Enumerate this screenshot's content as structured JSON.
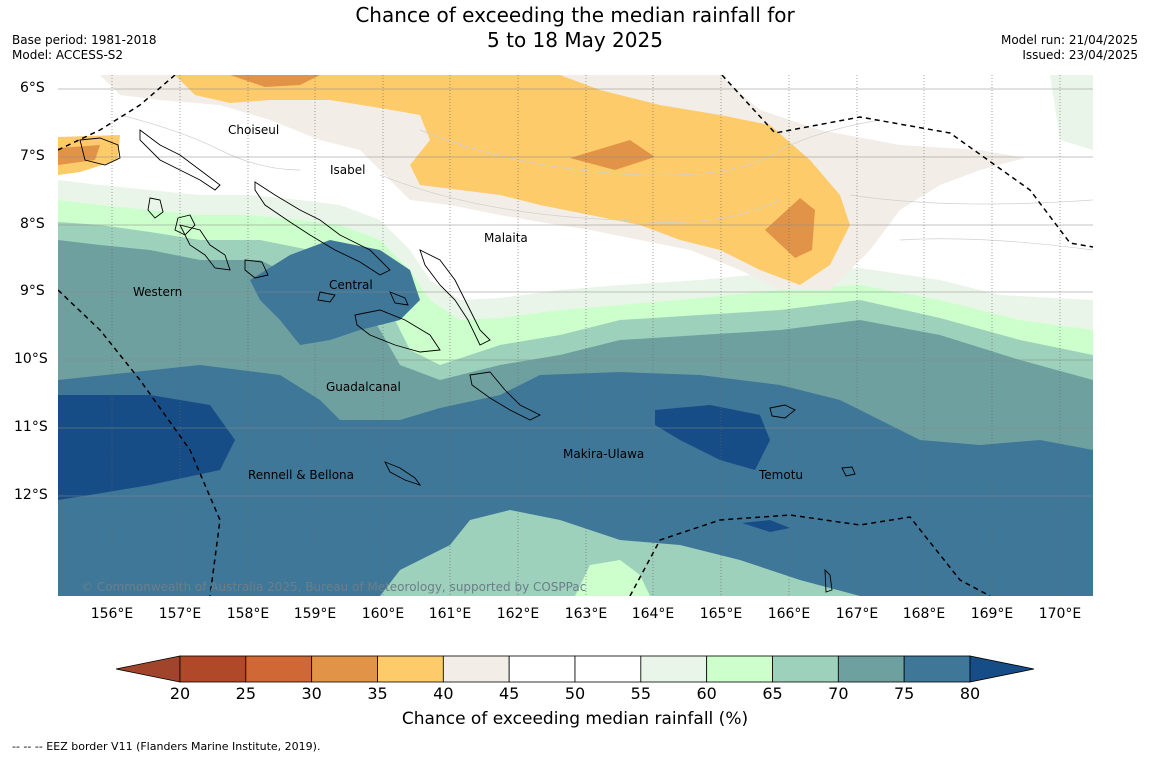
{
  "title": {
    "line1": "Chance of exceeding the median rainfall for",
    "line2": "5 to 18 May 2025"
  },
  "meta_left": {
    "base_period": "Base period: 1981-2018",
    "model": "Model: ACCESS-S2"
  },
  "meta_right": {
    "model_run": "Model run: 21/04/2025",
    "issued": "Issued: 23/04/2025"
  },
  "credit": "© Commonwealth of Australia 2025, Bureau of Meteorology, supported by COSPPac",
  "footer": "-- -- -- EEZ border V11 (Flanders Marine Institute, 2019).",
  "colorbar": {
    "label": "Chance of exceeding median rainfall (%)",
    "ticks": [
      "20",
      "25",
      "30",
      "35",
      "40",
      "45",
      "50",
      "55",
      "60",
      "65",
      "70",
      "75",
      "80"
    ],
    "colors": [
      "#b0482a",
      "#cf6834",
      "#e19448",
      "#fecb6a",
      "#f2ede7",
      "#ffffff",
      "#ffffff",
      "#eaf5ea",
      "#ccffcc",
      "#9dd1bb",
      "#6ea0a0",
      "#3f7799",
      "#174d87"
    ],
    "under_color": "#a0452c",
    "over_color": "#174d87"
  },
  "axes": {
    "lon_labels": [
      "156°E",
      "157°E",
      "158°E",
      "159°E",
      "160°E",
      "161°E",
      "162°E",
      "163°E",
      "164°E",
      "165°E",
      "166°E",
      "167°E",
      "168°E",
      "169°E",
      "170°E"
    ],
    "lat_labels": [
      "6°S",
      "7°S",
      "8°S",
      "9°S",
      "10°S",
      "11°S",
      "12°S"
    ]
  },
  "places": [
    {
      "name": "Choiseul"
    },
    {
      "name": "Isabel"
    },
    {
      "name": "Malaita"
    },
    {
      "name": "Western"
    },
    {
      "name": "Central"
    },
    {
      "name": "Guadalcanal"
    },
    {
      "name": "Makira-Ulawa"
    },
    {
      "name": "Rennell & Bellona"
    },
    {
      "name": "Temotu"
    }
  ]
}
